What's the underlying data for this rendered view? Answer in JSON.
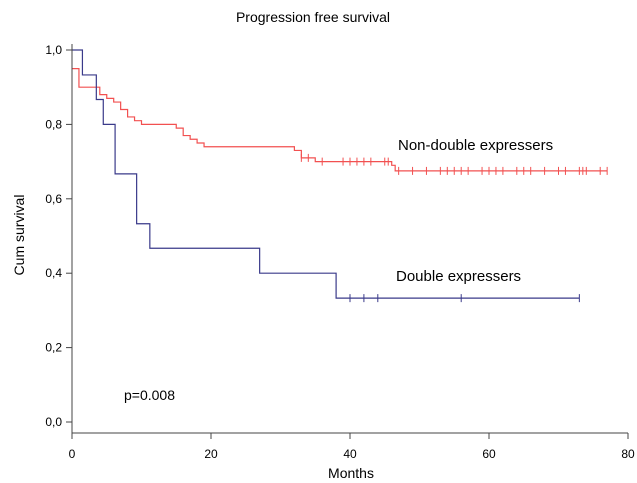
{
  "chart_data": {
    "type": "line",
    "title": "Progression free survival",
    "xlabel": "Months",
    "ylabel": "Cum survival",
    "xlim": [
      0,
      80
    ],
    "ylim": [
      0.0,
      1.0
    ],
    "x_ticks": [
      "0",
      "20",
      "40",
      "60",
      "80"
    ],
    "y_ticks": [
      "0,0",
      "0,2",
      "0,4",
      "0,6",
      "0,8",
      "1,0"
    ],
    "grid": false,
    "annotation": "p=0.008",
    "series": [
      {
        "name": "Non-double expressers",
        "color": "#f25050",
        "step": [
          [
            0,
            0.95
          ],
          [
            1,
            0.9
          ],
          [
            3,
            0.9
          ],
          [
            4,
            0.88
          ],
          [
            5,
            0.87
          ],
          [
            6,
            0.86
          ],
          [
            7,
            0.84
          ],
          [
            8,
            0.82
          ],
          [
            9,
            0.81
          ],
          [
            10,
            0.8
          ],
          [
            15,
            0.79
          ],
          [
            16,
            0.77
          ],
          [
            17,
            0.76
          ],
          [
            18,
            0.75
          ],
          [
            19,
            0.74
          ],
          [
            32,
            0.73
          ],
          [
            33,
            0.71
          ],
          [
            35,
            0.7
          ],
          [
            45,
            0.7
          ],
          [
            46,
            0.69
          ],
          [
            46.5,
            0.675
          ],
          [
            77,
            0.675
          ]
        ],
        "censored": [
          33,
          34,
          36,
          39,
          40,
          41,
          42,
          43,
          45,
          45.5,
          47,
          49,
          51,
          53,
          54,
          55,
          56,
          57,
          59,
          60,
          61,
          62,
          64,
          65,
          66,
          68,
          70,
          71,
          73,
          73.5,
          74,
          76,
          77
        ]
      },
      {
        "name": "Double expressers",
        "color": "#3a3a8a",
        "step": [
          [
            0,
            1.0
          ],
          [
            1.5,
            0.933
          ],
          [
            3.5,
            0.867
          ],
          [
            4.5,
            0.8
          ],
          [
            6.2,
            0.667
          ],
          [
            9.3,
            0.533
          ],
          [
            11.2,
            0.467
          ],
          [
            27,
            0.4
          ],
          [
            38,
            0.333
          ],
          [
            73,
            0.333
          ]
        ],
        "censored": [
          40,
          42,
          44,
          56,
          73
        ]
      }
    ]
  }
}
